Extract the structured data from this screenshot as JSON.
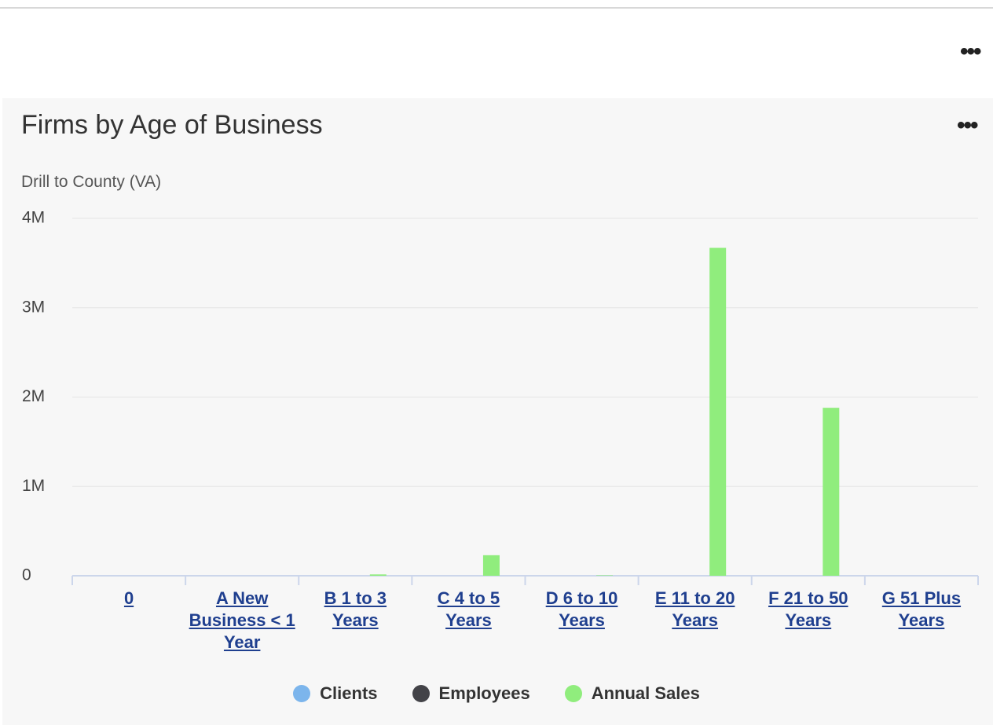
{
  "chart_data": {
    "type": "bar",
    "title": "Firms by Age of Business",
    "subtitle": "Drill to County (VA)",
    "categories": [
      "0",
      "A New Business < 1 Year",
      "B 1 to 3 Years",
      "C 4 to 5 Years",
      "D 6 to 10 Years",
      "E 11 to 20 Years",
      "F 21 to 50 Years",
      "G 51 Plus Years"
    ],
    "series": [
      {
        "name": "Clients",
        "color": "#7cb5ec",
        "values": [
          0,
          0,
          0,
          0,
          0,
          0,
          0,
          0
        ]
      },
      {
        "name": "Employees",
        "color": "#434348",
        "values": [
          0,
          0,
          0,
          0,
          0,
          0,
          0,
          0
        ]
      },
      {
        "name": "Annual Sales",
        "color": "#90ed7d",
        "values": [
          0,
          0,
          15000,
          230000,
          5000,
          3670000,
          1880000,
          0
        ]
      }
    ],
    "ylim": [
      0,
      4000000
    ],
    "yticks": [
      0,
      {
        "value": 1000000,
        "label": "1M"
      },
      {
        "value": 2000000,
        "label": "2M"
      },
      {
        "value": 3000000,
        "label": "3M"
      },
      {
        "value": 4000000,
        "label": "4M"
      }
    ],
    "grid": true,
    "legend": "bottom"
  }
}
